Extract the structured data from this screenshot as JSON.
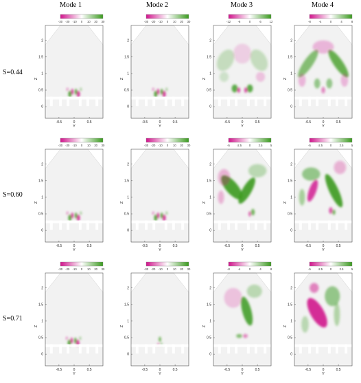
{
  "columns": [
    "Mode 1",
    "Mode 2",
    "Mode 3",
    "Mode 4"
  ],
  "rows": [
    "S=0.44",
    "S=0.60",
    "S=0.71"
  ],
  "axes": {
    "z_label": "Z",
    "y_label": "Y",
    "z_ticks": [
      "0",
      "0.5",
      "1",
      "1.5",
      "2"
    ],
    "y_ticks": [
      "-0.5",
      "0",
      "0.5"
    ]
  },
  "colorbars": [
    [
      "-30",
      "-20",
      "-10",
      "0",
      "10",
      "20",
      "30"
    ],
    [
      "-30",
      "-20",
      "-10",
      "0",
      "10",
      "20",
      "30"
    ],
    [
      "-12",
      "-6",
      "0",
      "6",
      "12"
    ],
    [
      "-8",
      "-4",
      "0",
      "4",
      "8"
    ],
    [
      "-30",
      "-20",
      "-10",
      "0",
      "10",
      "20",
      "30"
    ],
    [
      "-30",
      "-20",
      "-10",
      "0",
      "10",
      "20",
      "30"
    ],
    [
      "-5",
      "-2.5",
      "0",
      "2.5",
      "5"
    ],
    [
      "-5",
      "-2.5",
      "0",
      "2.5",
      "5"
    ],
    [
      "-30",
      "-20",
      "-10",
      "0",
      "10",
      "20",
      "30"
    ],
    [
      "-30",
      "-20",
      "-10",
      "0",
      "10",
      "20",
      "30"
    ],
    [
      "-8",
      "-4",
      "0",
      "4",
      "8"
    ],
    [
      "-5",
      "-2.5",
      "0",
      "2.5",
      "5"
    ]
  ],
  "colors": {
    "negative": "#d0148c",
    "positive": "#3a9a1e",
    "neutral": "#f2f2f2"
  }
}
